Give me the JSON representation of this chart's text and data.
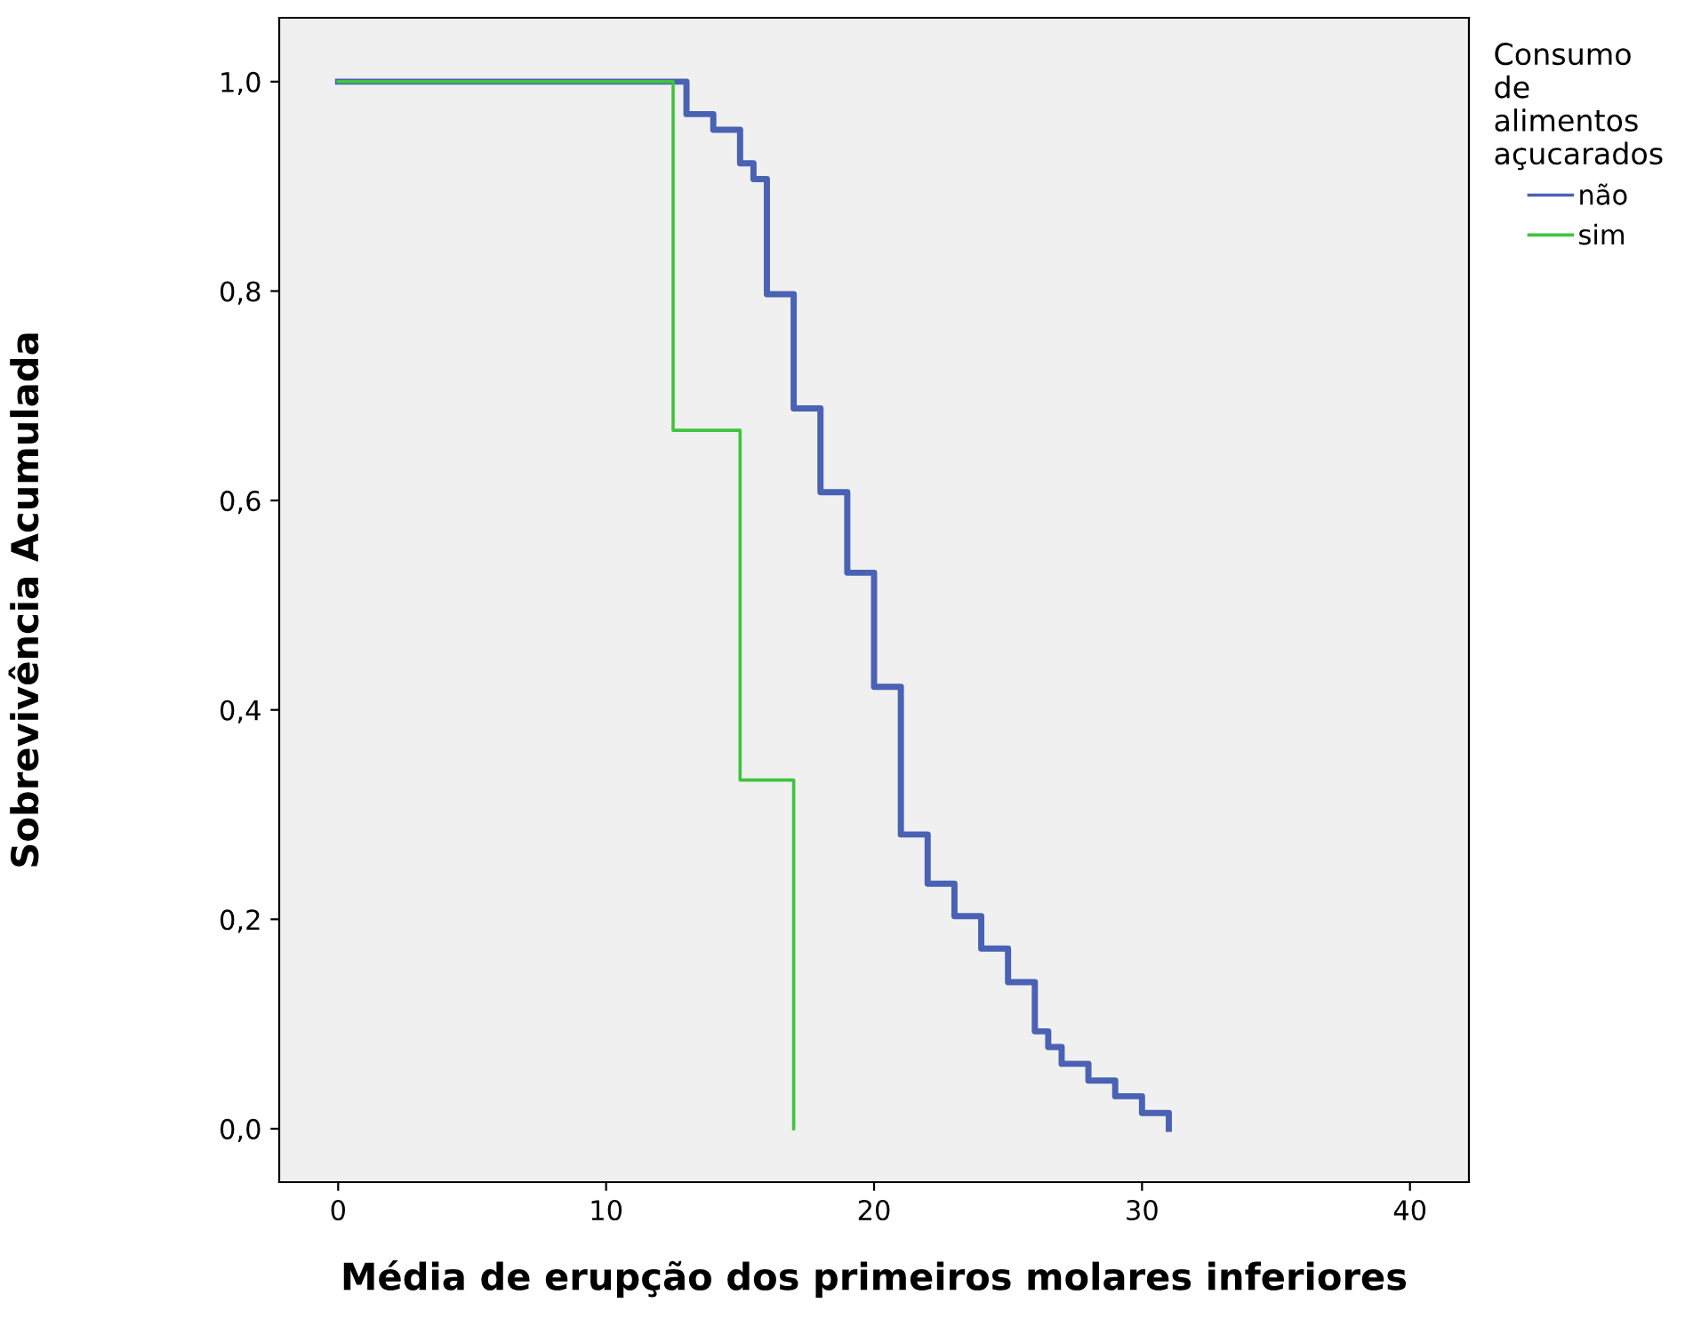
{
  "chart_data": {
    "type": "step",
    "xlabel": "Média de erupção dos primeiros molares inferiores",
    "ylabel": "Sobrevivência Acumulada",
    "legend_title": "Consumo\nde\nalimentos\naçucarados",
    "series": [
      {
        "name": "não",
        "color": "#4a62b4",
        "x": [
          0,
          13,
          14,
          15,
          15.5,
          16,
          17,
          18,
          19,
          20,
          21,
          22,
          23,
          24,
          25,
          26,
          26.5,
          27,
          28,
          29,
          30,
          31
        ],
        "values": [
          1.0,
          0.969,
          0.954,
          0.922,
          0.907,
          0.797,
          0.688,
          0.608,
          0.531,
          0.422,
          0.281,
          0.234,
          0.203,
          0.172,
          0.14,
          0.093,
          0.078,
          0.062,
          0.046,
          0.031,
          0.015,
          0.0
        ]
      },
      {
        "name": "sim",
        "color": "#3ec43e",
        "x": [
          0,
          12.5,
          15,
          17
        ],
        "values": [
          1.0,
          0.667,
          0.333,
          0.0
        ]
      }
    ],
    "xlim": [
      -2.2,
      42.2
    ],
    "ylim": [
      -0.051,
      1.061
    ],
    "xticks": [
      0,
      10,
      20,
      30,
      40
    ],
    "yticks": [
      {
        "value": 0,
        "label": "0,0"
      },
      {
        "value": 0.2,
        "label": "0,2"
      },
      {
        "value": 0.4,
        "label": "0,4"
      },
      {
        "value": 0.6,
        "label": "0,6"
      },
      {
        "value": 0.8,
        "label": "0,8"
      },
      {
        "value": 1.0,
        "label": "1,0"
      }
    ],
    "grid": false,
    "legend": "top right",
    "marker": "none",
    "line_style": "solid"
  }
}
